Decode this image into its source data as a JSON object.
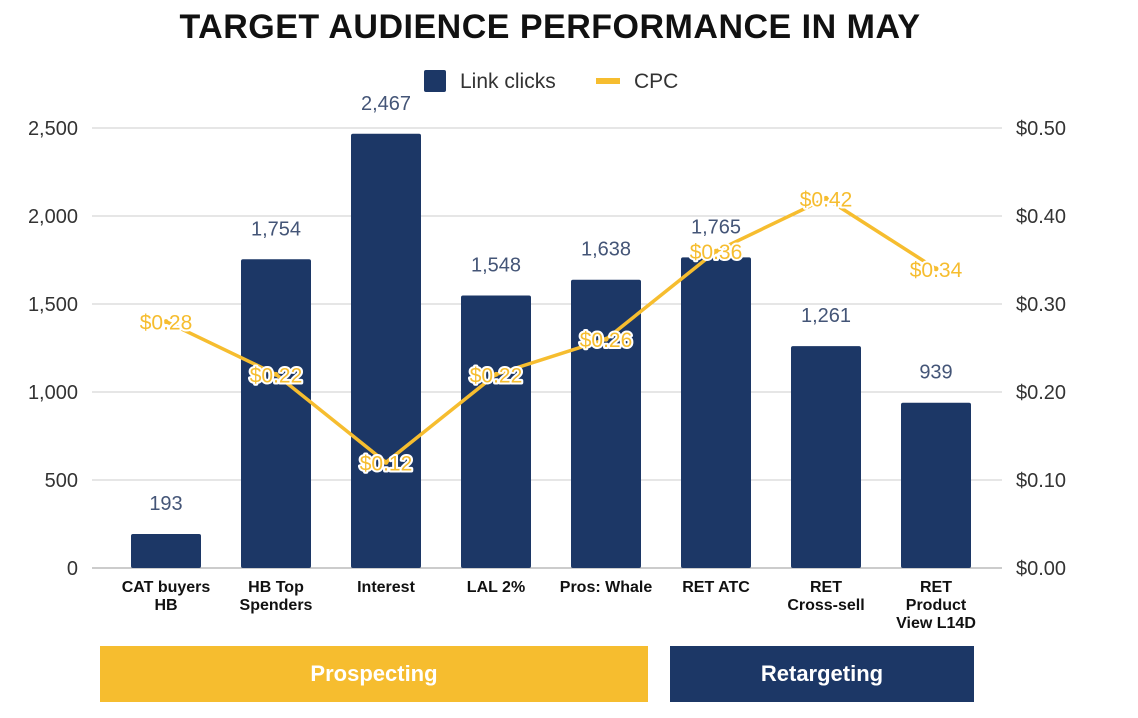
{
  "colors": {
    "bar": "#1c3766",
    "cpc": "#f6bd2f",
    "grid": "#cccccc",
    "axis_text": "#333333",
    "bar_label": "#445577"
  },
  "chart_data": {
    "type": "bar",
    "title": "TARGET AUDIENCE PERFORMANCE IN MAY",
    "categories": [
      [
        "CAT buyers",
        "HB"
      ],
      [
        "HB Top",
        "Spenders"
      ],
      [
        "Interest"
      ],
      [
        "LAL 2%"
      ],
      [
        "Pros: Whale"
      ],
      [
        "RET ATC"
      ],
      [
        "RET",
        "Cross-sell"
      ],
      [
        "RET",
        "Product",
        "View L14D"
      ]
    ],
    "series": [
      {
        "name": "Link clicks",
        "type": "bar",
        "axis": "left",
        "values": [
          193,
          1754,
          2467,
          1548,
          1638,
          1765,
          1261,
          939
        ],
        "labels": [
          "193",
          "1,754",
          "2,467",
          "1,548",
          "1,638",
          "1,765",
          "1,261",
          "939"
        ]
      },
      {
        "name": "CPC",
        "type": "line",
        "axis": "right",
        "values": [
          0.28,
          0.22,
          0.12,
          0.22,
          0.26,
          0.36,
          0.42,
          0.34
        ],
        "labels": [
          "$0.28",
          "$0.22",
          "$0.12",
          "$0.22",
          "$0.26",
          "$0.36",
          "$0.42",
          "$0.34"
        ]
      }
    ],
    "left_axis": {
      "range": [
        0,
        2500
      ],
      "ticks": [
        0,
        500,
        1000,
        1500,
        2000,
        2500
      ],
      "tick_labels": [
        "0",
        "500",
        "1,000",
        "1,500",
        "2,000",
        "2,500"
      ]
    },
    "right_axis": {
      "range": [
        0,
        0.5
      ],
      "ticks": [
        0,
        0.1,
        0.2,
        0.3,
        0.4,
        0.5
      ],
      "tick_labels": [
        "$0.00",
        "$0.10",
        "$0.20",
        "$0.30",
        "$0.40",
        "$0.50"
      ]
    },
    "legend": {
      "position": "top-center",
      "items": [
        "Link clicks",
        "CPC"
      ]
    },
    "groups": [
      {
        "label": "Prospecting",
        "categories_from": 0,
        "categories_to": 4,
        "color": "#f6bd2f"
      },
      {
        "label": "Retargeting",
        "categories_from": 5,
        "categories_to": 7,
        "color": "#1c3766"
      }
    ]
  }
}
